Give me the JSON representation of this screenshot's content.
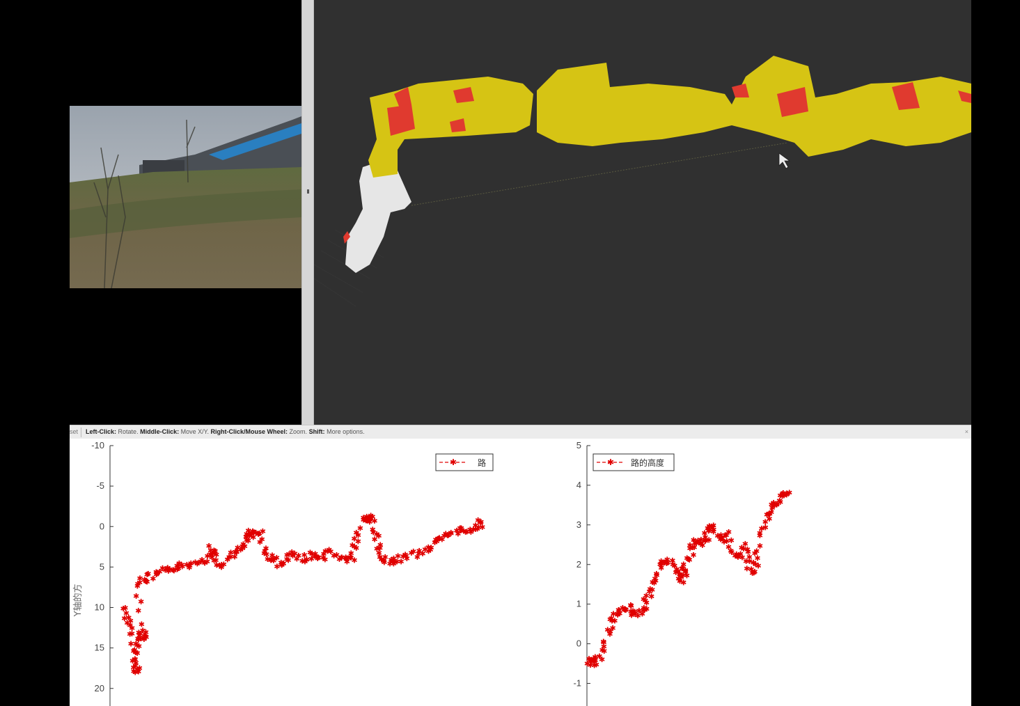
{
  "status_bar": {
    "reset_label": "set",
    "left_click_key": "Left-Click:",
    "left_click_action": "Rotate.",
    "middle_click_key": "Middle-Click:",
    "middle_click_action": "Move X/Y.",
    "right_click_key": "Right-Click/Mouse Wheel:",
    "right_click_action": "Zoom.",
    "shift_key": "Shift:",
    "shift_action": "More options.",
    "dismiss": "×"
  },
  "colors": {
    "map_yellow": "#d6c414",
    "map_red": "#e03a2f",
    "map_white": "#e6e6e6",
    "viewport_bg": "#303030",
    "plot_red": "#e00000"
  },
  "chart_data": [
    {
      "type": "scatter",
      "title": "",
      "xlabel": "",
      "ylabel": "Y轴的方",
      "ylim": [
        -10,
        22
      ],
      "y_reversed": true,
      "yticks": [
        "-10",
        "-5",
        "0",
        "5",
        "10",
        "15",
        "20"
      ],
      "legend": "top-right",
      "series": [
        {
          "name": "路",
          "points": [
            [
              0,
              10
            ],
            [
              2,
              12
            ],
            [
              4,
              14.5
            ],
            [
              5,
              17
            ],
            [
              6,
              18
            ],
            [
              6,
              14
            ],
            [
              8,
              13
            ],
            [
              10,
              14
            ],
            [
              6,
              7
            ],
            [
              10,
              6.5
            ],
            [
              15,
              6
            ],
            [
              20,
              5.5
            ],
            [
              25,
              5
            ],
            [
              30,
              4.8
            ],
            [
              35,
              4.2
            ],
            [
              40,
              4
            ],
            [
              42,
              2.5
            ],
            [
              45,
              5
            ],
            [
              50,
              4
            ],
            [
              55,
              3
            ],
            [
              58,
              2.5
            ],
            [
              60,
              0.5
            ],
            [
              62,
              1
            ],
            [
              65,
              0.5
            ],
            [
              68,
              3.5
            ],
            [
              72,
              4
            ],
            [
              76,
              5
            ],
            [
              80,
              3.5
            ],
            [
              85,
              4
            ],
            [
              90,
              3.5
            ],
            [
              95,
              4
            ],
            [
              100,
              3
            ],
            [
              105,
              4
            ],
            [
              110,
              4
            ],
            [
              112,
              2
            ],
            [
              115,
              -1
            ],
            [
              118,
              -1
            ],
            [
              120,
              -1
            ],
            [
              122,
              2
            ],
            [
              125,
              4
            ],
            [
              128,
              4.5
            ],
            [
              132,
              4
            ],
            [
              138,
              3.5
            ],
            [
              145,
              3
            ],
            [
              150,
              2
            ],
            [
              155,
              1.5
            ],
            [
              160,
              0.5
            ],
            [
              165,
              0.5
            ],
            [
              170,
              0
            ],
            [
              172,
              -0.5
            ]
          ]
        }
      ]
    },
    {
      "type": "scatter",
      "title": "",
      "xlabel": "",
      "ylabel": "",
      "ylim": [
        -1.5,
        5
      ],
      "yticks": [
        "-1",
        "0",
        "1",
        "2",
        "3",
        "4",
        "5"
      ],
      "legend": "top-left",
      "series": [
        {
          "name": "路的高度",
          "points": [
            [
              0,
              -0.4
            ],
            [
              3,
              -0.5
            ],
            [
              6,
              -0.4
            ],
            [
              10,
              0
            ],
            [
              14,
              0.5
            ],
            [
              18,
              0.8
            ],
            [
              22,
              0.9
            ],
            [
              26,
              0.9
            ],
            [
              30,
              0.7
            ],
            [
              34,
              0.9
            ],
            [
              38,
              1.2
            ],
            [
              42,
              1.6
            ],
            [
              46,
              2
            ],
            [
              50,
              2.1
            ],
            [
              54,
              1.8
            ],
            [
              58,
              1.6
            ],
            [
              60,
              1.9
            ],
            [
              63,
              2.3
            ],
            [
              66,
              2.6
            ],
            [
              70,
              2.5
            ],
            [
              74,
              2.8
            ],
            [
              78,
              3
            ],
            [
              82,
              2.6
            ],
            [
              86,
              2.8
            ],
            [
              90,
              2.3
            ],
            [
              94,
              2.2
            ],
            [
              98,
              2.5
            ],
            [
              100,
              1.8
            ],
            [
              104,
              2
            ],
            [
              108,
              2.8
            ],
            [
              112,
              3.3
            ],
            [
              116,
              3.5
            ],
            [
              120,
              3.7
            ],
            [
              123,
              3.8
            ]
          ]
        }
      ]
    }
  ]
}
